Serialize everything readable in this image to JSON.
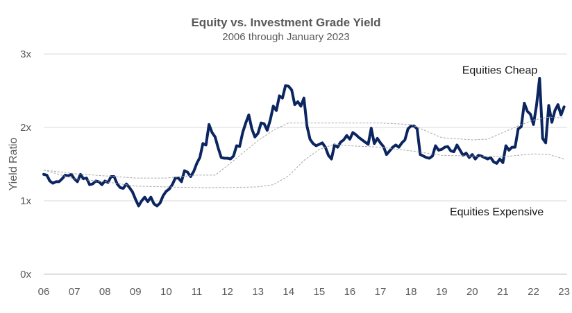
{
  "chart_data": {
    "type": "line",
    "title": "Equity vs. Investment Grade Yield",
    "subtitle": "2006 through January 2023",
    "xlabel": "",
    "ylabel": "Yield Ratio",
    "xlim": [
      2006.0,
      2023.1
    ],
    "ylim": [
      0,
      3
    ],
    "yticks": [
      0,
      1,
      2,
      3
    ],
    "ytick_labels": [
      "0x",
      "1x",
      "2x",
      "3x"
    ],
    "xticks": [
      2006,
      2007,
      2008,
      2009,
      2010,
      2011,
      2012,
      2013,
      2014,
      2015,
      2016,
      2017,
      2018,
      2019,
      2020,
      2021,
      2022,
      2023
    ],
    "xtick_labels": [
      "06",
      "07",
      "08",
      "09",
      "10",
      "11",
      "12",
      "13",
      "14",
      "15",
      "16",
      "17",
      "18",
      "19",
      "20",
      "21",
      "22",
      "23"
    ],
    "grid": true,
    "legend": "none",
    "annotations": [
      {
        "text": "Equities Cheap",
        "x": 2020.9,
        "y": 2.78
      },
      {
        "text": "Equities Expensive",
        "x": 2020.8,
        "y": 0.85
      }
    ],
    "colors": {
      "ratio": "#0b2560",
      "bands": "#a6a6a6",
      "grid": "#d9d9d9",
      "text": "#595959"
    },
    "series": [
      {
        "style": "solid",
        "points": [
          [
            2006.0,
            1.36
          ],
          [
            2006.1,
            1.35
          ],
          [
            2006.2,
            1.27
          ],
          [
            2006.3,
            1.24
          ],
          [
            2006.4,
            1.26
          ],
          [
            2006.5,
            1.26
          ],
          [
            2006.6,
            1.3
          ],
          [
            2006.7,
            1.35
          ],
          [
            2006.8,
            1.34
          ],
          [
            2006.9,
            1.36
          ],
          [
            2007.0,
            1.3
          ],
          [
            2007.1,
            1.26
          ],
          [
            2007.2,
            1.36
          ],
          [
            2007.3,
            1.3
          ],
          [
            2007.4,
            1.31
          ],
          [
            2007.5,
            1.22
          ],
          [
            2007.6,
            1.23
          ],
          [
            2007.7,
            1.27
          ],
          [
            2007.8,
            1.26
          ],
          [
            2007.9,
            1.22
          ],
          [
            2008.0,
            1.27
          ],
          [
            2008.1,
            1.25
          ],
          [
            2008.2,
            1.33
          ],
          [
            2008.3,
            1.33
          ],
          [
            2008.4,
            1.23
          ],
          [
            2008.5,
            1.18
          ],
          [
            2008.6,
            1.17
          ],
          [
            2008.7,
            1.23
          ],
          [
            2008.8,
            1.18
          ],
          [
            2008.9,
            1.12
          ],
          [
            2009.0,
            1.02
          ],
          [
            2009.1,
            0.93
          ],
          [
            2009.2,
            1.0
          ],
          [
            2009.3,
            1.05
          ],
          [
            2009.4,
            0.99
          ],
          [
            2009.5,
            1.05
          ],
          [
            2009.6,
            0.96
          ],
          [
            2009.7,
            0.93
          ],
          [
            2009.8,
            0.97
          ],
          [
            2009.9,
            1.07
          ],
          [
            2010.0,
            1.13
          ],
          [
            2010.1,
            1.16
          ],
          [
            2010.2,
            1.22
          ],
          [
            2010.3,
            1.31
          ],
          [
            2010.4,
            1.31
          ],
          [
            2010.5,
            1.26
          ],
          [
            2010.6,
            1.41
          ],
          [
            2010.7,
            1.39
          ],
          [
            2010.8,
            1.33
          ],
          [
            2010.9,
            1.4
          ],
          [
            2011.0,
            1.51
          ],
          [
            2011.1,
            1.59
          ],
          [
            2011.2,
            1.78
          ],
          [
            2011.3,
            1.76
          ],
          [
            2011.4,
            2.04
          ],
          [
            2011.5,
            1.93
          ],
          [
            2011.6,
            1.87
          ],
          [
            2011.7,
            1.72
          ],
          [
            2011.8,
            1.59
          ],
          [
            2011.9,
            1.58
          ],
          [
            2012.0,
            1.58
          ],
          [
            2012.1,
            1.57
          ],
          [
            2012.2,
            1.61
          ],
          [
            2012.3,
            1.75
          ],
          [
            2012.4,
            1.74
          ],
          [
            2012.5,
            1.93
          ],
          [
            2012.6,
            2.06
          ],
          [
            2012.7,
            2.17
          ],
          [
            2012.8,
            1.98
          ],
          [
            2012.9,
            1.87
          ],
          [
            2013.0,
            1.92
          ],
          [
            2013.1,
            2.06
          ],
          [
            2013.2,
            2.05
          ],
          [
            2013.3,
            1.96
          ],
          [
            2013.4,
            2.1
          ],
          [
            2013.5,
            2.29
          ],
          [
            2013.6,
            2.23
          ],
          [
            2013.7,
            2.43
          ],
          [
            2013.8,
            2.4
          ],
          [
            2013.9,
            2.57
          ],
          [
            2014.0,
            2.56
          ],
          [
            2014.1,
            2.51
          ],
          [
            2014.2,
            2.31
          ],
          [
            2014.3,
            2.35
          ],
          [
            2014.4,
            2.29
          ],
          [
            2014.5,
            2.4
          ],
          [
            2014.6,
            2.02
          ],
          [
            2014.7,
            1.84
          ],
          [
            2014.8,
            1.78
          ],
          [
            2014.9,
            1.75
          ],
          [
            2015.0,
            1.77
          ],
          [
            2015.1,
            1.79
          ],
          [
            2015.2,
            1.73
          ],
          [
            2015.3,
            1.62
          ],
          [
            2015.4,
            1.57
          ],
          [
            2015.5,
            1.76
          ],
          [
            2015.6,
            1.73
          ],
          [
            2015.7,
            1.8
          ],
          [
            2015.8,
            1.83
          ],
          [
            2015.9,
            1.89
          ],
          [
            2016.0,
            1.84
          ],
          [
            2016.1,
            1.93
          ],
          [
            2016.2,
            1.9
          ],
          [
            2016.3,
            1.86
          ],
          [
            2016.4,
            1.83
          ],
          [
            2016.5,
            1.8
          ],
          [
            2016.6,
            1.77
          ],
          [
            2016.7,
            1.99
          ],
          [
            2016.8,
            1.78
          ],
          [
            2016.9,
            1.85
          ],
          [
            2017.0,
            1.79
          ],
          [
            2017.1,
            1.74
          ],
          [
            2017.2,
            1.63
          ],
          [
            2017.3,
            1.68
          ],
          [
            2017.4,
            1.73
          ],
          [
            2017.5,
            1.76
          ],
          [
            2017.6,
            1.73
          ],
          [
            2017.7,
            1.79
          ],
          [
            2017.8,
            1.83
          ],
          [
            2017.9,
            1.98
          ],
          [
            2018.0,
            2.02
          ],
          [
            2018.1,
            2.02
          ],
          [
            2018.2,
            1.98
          ],
          [
            2018.3,
            1.63
          ],
          [
            2018.4,
            1.61
          ],
          [
            2018.5,
            1.59
          ],
          [
            2018.6,
            1.58
          ],
          [
            2018.7,
            1.61
          ],
          [
            2018.8,
            1.75
          ],
          [
            2018.9,
            1.69
          ],
          [
            2019.0,
            1.7
          ],
          [
            2019.1,
            1.73
          ],
          [
            2019.2,
            1.74
          ],
          [
            2019.3,
            1.68
          ],
          [
            2019.4,
            1.67
          ],
          [
            2019.5,
            1.76
          ],
          [
            2019.6,
            1.69
          ],
          [
            2019.7,
            1.62
          ],
          [
            2019.8,
            1.65
          ],
          [
            2019.9,
            1.59
          ],
          [
            2020.0,
            1.63
          ],
          [
            2020.1,
            1.57
          ],
          [
            2020.2,
            1.62
          ],
          [
            2020.3,
            1.61
          ],
          [
            2020.4,
            1.59
          ],
          [
            2020.5,
            1.57
          ],
          [
            2020.6,
            1.59
          ],
          [
            2020.7,
            1.53
          ],
          [
            2020.8,
            1.51
          ],
          [
            2020.9,
            1.57
          ],
          [
            2021.0,
            1.52
          ],
          [
            2021.1,
            1.75
          ],
          [
            2021.2,
            1.69
          ],
          [
            2021.3,
            1.73
          ],
          [
            2021.4,
            1.73
          ],
          [
            2021.5,
            1.98
          ],
          [
            2021.6,
            2.01
          ],
          [
            2021.7,
            2.33
          ],
          [
            2021.8,
            2.22
          ],
          [
            2021.9,
            2.18
          ],
          [
            2022.0,
            2.04
          ],
          [
            2022.1,
            2.3
          ],
          [
            2022.2,
            2.67
          ],
          [
            2022.3,
            1.85
          ],
          [
            2022.4,
            1.79
          ],
          [
            2022.5,
            2.3
          ],
          [
            2022.6,
            2.07
          ],
          [
            2022.7,
            2.23
          ],
          [
            2022.8,
            2.31
          ],
          [
            2022.9,
            2.17
          ],
          [
            2023.0,
            2.28
          ]
        ]
      },
      {
        "style": "dashed",
        "points": [
          [
            2006.0,
            1.42
          ],
          [
            2007.0,
            1.37
          ],
          [
            2008.0,
            1.34
          ],
          [
            2009.0,
            1.31
          ],
          [
            2010.0,
            1.31
          ],
          [
            2011.0,
            1.35
          ],
          [
            2011.6,
            1.35
          ],
          [
            2012.0,
            1.48
          ],
          [
            2012.5,
            1.65
          ],
          [
            2013.0,
            1.82
          ],
          [
            2013.5,
            1.96
          ],
          [
            2014.0,
            2.06
          ],
          [
            2015.0,
            2.06
          ],
          [
            2016.0,
            2.06
          ],
          [
            2017.0,
            2.06
          ],
          [
            2018.0,
            2.04
          ],
          [
            2018.5,
            1.95
          ],
          [
            2019.0,
            1.86
          ],
          [
            2020.0,
            1.83
          ],
          [
            2020.5,
            1.84
          ],
          [
            2021.0,
            1.93
          ],
          [
            2021.5,
            2.02
          ],
          [
            2022.0,
            2.1
          ],
          [
            2022.5,
            2.14
          ],
          [
            2023.0,
            2.13
          ]
        ]
      },
      {
        "style": "dashed",
        "points": [
          [
            2006.0,
            1.42
          ],
          [
            2007.0,
            1.3
          ],
          [
            2008.0,
            1.26
          ],
          [
            2009.0,
            1.2
          ],
          [
            2010.0,
            1.19
          ],
          [
            2011.0,
            1.18
          ],
          [
            2012.0,
            1.18
          ],
          [
            2013.0,
            1.19
          ],
          [
            2013.5,
            1.22
          ],
          [
            2014.0,
            1.34
          ],
          [
            2014.5,
            1.55
          ],
          [
            2015.0,
            1.7
          ],
          [
            2015.5,
            1.77
          ],
          [
            2016.0,
            1.75
          ],
          [
            2017.0,
            1.73
          ],
          [
            2018.0,
            1.68
          ],
          [
            2019.0,
            1.62
          ],
          [
            2020.0,
            1.61
          ],
          [
            2021.0,
            1.6
          ],
          [
            2022.0,
            1.64
          ],
          [
            2022.5,
            1.63
          ],
          [
            2023.0,
            1.57
          ]
        ]
      }
    ]
  }
}
